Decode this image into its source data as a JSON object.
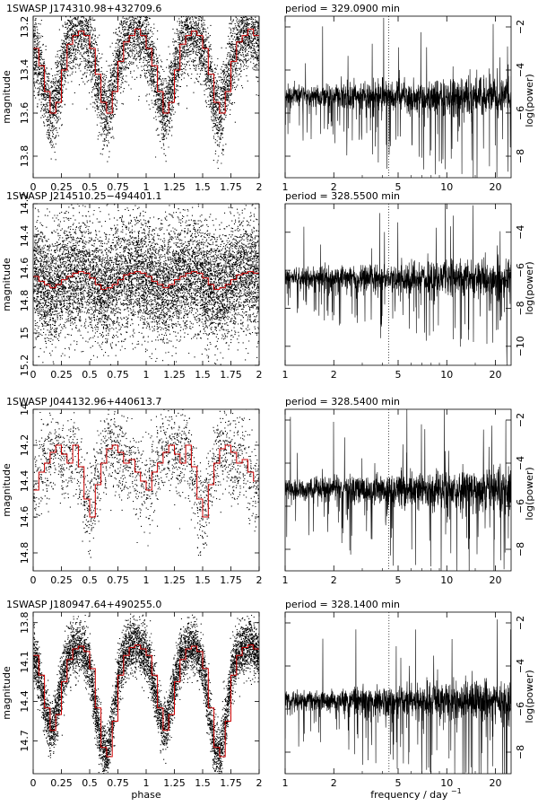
{
  "chart_data": [
    {
      "type": "scatter",
      "title": "1SWASP J174310.98+432709.6",
      "xlabel": "",
      "ylabel": "magnitude",
      "xlim": [
        0,
        2
      ],
      "ylim": [
        13.9,
        13.15
      ],
      "y_inverted": true,
      "x_ticks": [
        "0",
        "0.25",
        "0.5",
        "0.75",
        "1",
        "1.25",
        "1.5",
        "1.75",
        "2"
      ],
      "y_ticks": [
        13.2,
        13.4,
        13.6,
        13.8
      ],
      "y_tick_labels": [
        "13.2",
        "13.4",
        "13.6",
        "13.8"
      ],
      "series": [
        {
          "kind": "binned-mean",
          "color": "#cc0000",
          "x": [
            0,
            0.05,
            0.1,
            0.15,
            0.2,
            0.25,
            0.3,
            0.35,
            0.4,
            0.45,
            0.5,
            0.55,
            0.6,
            0.65,
            0.7,
            0.75,
            0.8,
            0.85,
            0.9,
            0.95,
            1.0
          ],
          "values": [
            13.3,
            13.38,
            13.5,
            13.6,
            13.55,
            13.4,
            13.28,
            13.24,
            13.22,
            13.24,
            13.3,
            13.42,
            13.55,
            13.6,
            13.5,
            13.36,
            13.27,
            13.24,
            13.21,
            13.24,
            13.3
          ]
        }
      ],
      "points_description": "dense black points scattered about the red curve",
      "point_color": "#000000"
    },
    {
      "type": "line",
      "title": "period = 329.0900 min",
      "xlabel": "",
      "ylabel": "log(power)",
      "x_scale": "log",
      "xlim": [
        1,
        25
      ],
      "ylim": [
        -9,
        -1.5
      ],
      "x_ticks": [
        1,
        2,
        5,
        10,
        20
      ],
      "x_tick_labels": [
        "1",
        "2",
        "5",
        "10",
        "20"
      ],
      "y_ticks": [
        -2,
        -4,
        -6,
        -8
      ],
      "y_tick_labels": [
        "−2",
        "−4",
        "−6",
        "−8"
      ],
      "baseline": -5.2,
      "spread": 1.0,
      "peak_frequency": 4.37,
      "color": "#000000"
    },
    {
      "type": "scatter",
      "title": "1SWASP J214510.25−494401.1",
      "xlabel": "",
      "ylabel": "magnitude",
      "xlim": [
        0,
        2
      ],
      "ylim": [
        15.2,
        14.2
      ],
      "y_inverted": true,
      "x_ticks": [
        "0",
        "0.25",
        "0.5",
        "0.75",
        "1",
        "1.25",
        "1.5",
        "1.75",
        "2"
      ],
      "y_ticks": [
        14.2,
        14.4,
        14.6,
        14.8,
        15.0,
        15.2
      ],
      "y_tick_labels": [
        "14.2",
        "14.4",
        "14.6",
        "14.8",
        "15",
        "15.2"
      ],
      "series": [
        {
          "kind": "binned-mean",
          "color": "#cc0000",
          "x": [
            0,
            0.05,
            0.1,
            0.15,
            0.2,
            0.25,
            0.3,
            0.35,
            0.4,
            0.45,
            0.5,
            0.55,
            0.6,
            0.65,
            0.7,
            0.75,
            0.8,
            0.85,
            0.9,
            0.95,
            1.0
          ],
          "values": [
            14.65,
            14.68,
            14.7,
            14.72,
            14.7,
            14.67,
            14.65,
            14.63,
            14.62,
            14.63,
            14.66,
            14.7,
            14.73,
            14.72,
            14.7,
            14.67,
            14.64,
            14.63,
            14.62,
            14.63,
            14.65
          ]
        }
      ],
      "points_description": "dense black points with wide scatter",
      "point_color": "#000000"
    },
    {
      "type": "line",
      "title": "period = 328.5500 min",
      "xlabel": "",
      "ylabel": "log(power)",
      "x_scale": "log",
      "xlim": [
        1,
        25
      ],
      "ylim": [
        -11,
        -2.5
      ],
      "x_ticks": [
        1,
        2,
        5,
        10,
        20
      ],
      "x_tick_labels": [
        "1",
        "2",
        "5",
        "10",
        "20"
      ],
      "y_ticks": [
        -4,
        -6,
        -8,
        -10
      ],
      "y_tick_labels": [
        "−4",
        "−6",
        "−8",
        "−10"
      ],
      "baseline": -6.4,
      "spread": 1.1,
      "peak_frequency": 4.38,
      "color": "#000000"
    },
    {
      "type": "scatter",
      "title": "1SWASP J044132.96+440613.7",
      "xlabel": "",
      "ylabel": "magnitude",
      "xlim": [
        0,
        2
      ],
      "ylim": [
        14.9,
        14.0
      ],
      "y_inverted": true,
      "x_ticks": [
        "0",
        "0.25",
        "0.5",
        "0.75",
        "1",
        "1.25",
        "1.5",
        "1.75",
        "2"
      ],
      "y_ticks": [
        14.0,
        14.2,
        14.4,
        14.6,
        14.8
      ],
      "y_tick_labels": [
        "14",
        "14.2",
        "14.4",
        "14.6",
        "14.8"
      ],
      "series": [
        {
          "kind": "binned-mean",
          "color": "#cc0000",
          "x": [
            0,
            0.05,
            0.1,
            0.15,
            0.2,
            0.25,
            0.3,
            0.35,
            0.4,
            0.45,
            0.5,
            0.55,
            0.6,
            0.65,
            0.7,
            0.75,
            0.8,
            0.85,
            0.9,
            0.95,
            1.0
          ],
          "values": [
            14.45,
            14.35,
            14.3,
            14.24,
            14.2,
            14.25,
            14.3,
            14.2,
            14.32,
            14.5,
            14.6,
            14.42,
            14.3,
            14.22,
            14.2,
            14.24,
            14.3,
            14.28,
            14.35,
            14.4,
            14.45
          ]
        }
      ],
      "points_description": "sparse black points",
      "point_color": "#000000"
    },
    {
      "type": "line",
      "title": "period = 328.5400 min",
      "xlabel": "",
      "ylabel": "log(power)",
      "x_scale": "log",
      "xlim": [
        1,
        25
      ],
      "ylim": [
        -9,
        -1.5
      ],
      "x_ticks": [
        1,
        2,
        5,
        10,
        20
      ],
      "x_tick_labels": [
        "1",
        "2",
        "5",
        "10",
        "20"
      ],
      "y_ticks": [
        -2,
        -4,
        -6,
        -8
      ],
      "y_tick_labels": [
        "−2",
        "−4",
        "−6",
        "−8"
      ],
      "baseline": -5.2,
      "spread": 1.1,
      "peak_frequency": 4.38,
      "color": "#000000"
    },
    {
      "type": "scatter",
      "title": "1SWASP J180947.64+490255.0",
      "xlabel": "phase",
      "ylabel": "magnitude",
      "xlim": [
        0,
        2
      ],
      "ylim": [
        14.95,
        13.72
      ],
      "y_inverted": true,
      "x_ticks": [
        "0",
        "0.25",
        "0.5",
        "0.75",
        "1",
        "1.25",
        "1.5",
        "1.75",
        "2"
      ],
      "y_ticks": [
        13.8,
        14.1,
        14.4,
        14.7
      ],
      "y_tick_labels": [
        "13.8",
        "14.1",
        "14.4",
        "14.7"
      ],
      "series": [
        {
          "kind": "binned-mean",
          "color": "#cc0000",
          "x": [
            0,
            0.05,
            0.1,
            0.15,
            0.2,
            0.25,
            0.3,
            0.35,
            0.4,
            0.45,
            0.5,
            0.55,
            0.6,
            0.65,
            0.7,
            0.75,
            0.8,
            0.85,
            0.9,
            0.95,
            1.0
          ],
          "values": [
            14.05,
            14.2,
            14.45,
            14.62,
            14.5,
            14.25,
            14.08,
            14.0,
            13.98,
            14.02,
            14.15,
            14.45,
            14.75,
            14.82,
            14.55,
            14.2,
            14.05,
            13.99,
            13.97,
            14.0,
            14.05
          ]
        }
      ],
      "points_description": "dense black points following eclipsing-binary curve",
      "point_color": "#000000"
    },
    {
      "type": "line",
      "title": "period = 328.1400 min",
      "xlabel": "frequency / day",
      "xlabel_superscript": "−1",
      "ylabel": "log(power)",
      "x_scale": "log",
      "xlim": [
        1,
        25
      ],
      "ylim": [
        -9,
        -1.5
      ],
      "x_ticks": [
        1,
        2,
        5,
        10,
        20
      ],
      "x_tick_labels": [
        "1",
        "2",
        "5",
        "10",
        "20"
      ],
      "y_ticks": [
        -2,
        -4,
        -6,
        -8
      ],
      "y_tick_labels": [
        "−2",
        "−4",
        "−6",
        "−8"
      ],
      "baseline": -5.6,
      "spread": 1.0,
      "peak_frequency": 4.39,
      "color": "#000000"
    }
  ]
}
